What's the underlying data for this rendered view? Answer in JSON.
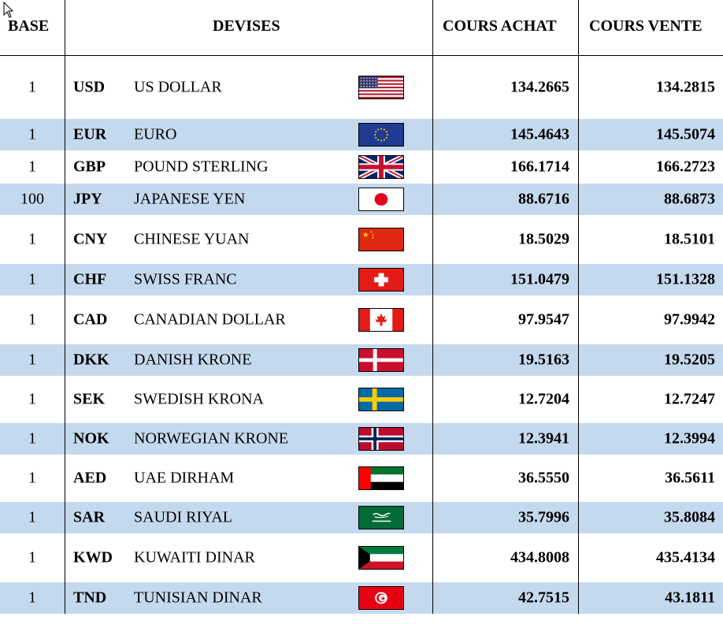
{
  "headers": {
    "base": "BASE",
    "devises": "DEVISES",
    "cours_achat": "COURS ACHAT",
    "cours_vente": "COURS VENTE"
  },
  "rows": [
    {
      "base": "1",
      "code": "USD",
      "name": "US DOLLAR",
      "flag": "us-flag-icon",
      "achat": "134.2665",
      "vente": "134.2815"
    },
    {
      "base": "1",
      "code": "EUR",
      "name": "EURO",
      "flag": "eu-flag-icon",
      "achat": "145.4643",
      "vente": "145.5074"
    },
    {
      "base": "1",
      "code": "GBP",
      "name": "POUND STERLING",
      "flag": "uk-flag-icon",
      "achat": "166.1714",
      "vente": "166.2723"
    },
    {
      "base": "100",
      "code": "JPY",
      "name": "JAPANESE YEN",
      "flag": "japan-flag-icon",
      "achat": "88.6716",
      "vente": "88.6873"
    },
    {
      "base": "1",
      "code": "CNY",
      "name": "CHINESE YUAN",
      "flag": "china-flag-icon",
      "achat": "18.5029",
      "vente": "18.5101"
    },
    {
      "base": "1",
      "code": "CHF",
      "name": "SWISS FRANC",
      "flag": "switzerland-flag-icon",
      "achat": "151.0479",
      "vente": "151.1328"
    },
    {
      "base": "1",
      "code": "CAD",
      "name": "CANADIAN DOLLAR",
      "flag": "canada-flag-icon",
      "achat": "97.9547",
      "vente": "97.9942"
    },
    {
      "base": "1",
      "code": "DKK",
      "name": "DANISH KRONE",
      "flag": "denmark-flag-icon",
      "achat": "19.5163",
      "vente": "19.5205"
    },
    {
      "base": "1",
      "code": "SEK",
      "name": "SWEDISH KRONA",
      "flag": "sweden-flag-icon",
      "achat": "12.7204",
      "vente": "12.7247"
    },
    {
      "base": "1",
      "code": "NOK",
      "name": "NORWEGIAN KRONE",
      "flag": "norway-flag-icon",
      "achat": "12.3941",
      "vente": "12.3994"
    },
    {
      "base": "1",
      "code": "AED",
      "name": "UAE DIRHAM",
      "flag": "uae-flag-icon",
      "achat": "36.5550",
      "vente": "36.5611"
    },
    {
      "base": "1",
      "code": "SAR",
      "name": "SAUDI RIYAL",
      "flag": "saudi-flag-icon",
      "achat": "35.7996",
      "vente": "35.8084"
    },
    {
      "base": "1",
      "code": "KWD",
      "name": "KUWAITI DINAR",
      "flag": "kuwait-flag-icon",
      "achat": "434.8008",
      "vente": "435.4134"
    },
    {
      "base": "1",
      "code": "TND",
      "name": "TUNISIAN DINAR",
      "flag": "tunisia-flag-icon",
      "achat": "42.7515",
      "vente": "43.1811"
    }
  ],
  "colors": {
    "row_alt_background": "#c5d9ee",
    "border": "#000000"
  }
}
